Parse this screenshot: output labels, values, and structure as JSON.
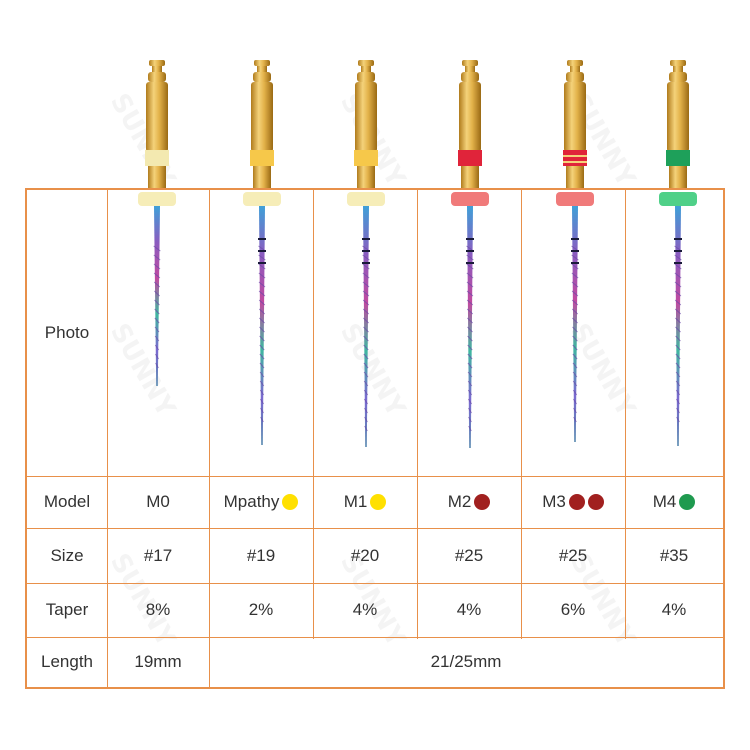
{
  "row_labels": {
    "photo": "Photo",
    "model": "Model",
    "size": "Size",
    "taper": "Taper",
    "length": "Length"
  },
  "files": [
    {
      "model": "M0",
      "size": "#17",
      "taper": "8%",
      "ring": "#f3e9b0",
      "stop": "#f6edb8",
      "band": "none",
      "dots": []
    },
    {
      "model": "Mpathy",
      "size": "#19",
      "taper": "2%",
      "ring": "#f6c84a",
      "stop": "#f6edb8",
      "band": "none",
      "dots": [
        "#ffe000"
      ]
    },
    {
      "model": "M1",
      "size": "#20",
      "taper": "4%",
      "ring": "#f6c84a",
      "stop": "#f6edb8",
      "band": "none",
      "dots": [
        "#ffe000"
      ]
    },
    {
      "model": "M2",
      "size": "#25",
      "taper": "4%",
      "ring": "#e0243a",
      "stop": "#f07a7a",
      "band": "none",
      "dots": [
        "#a1201f"
      ]
    },
    {
      "model": "M3",
      "size": "#25",
      "taper": "6%",
      "ring": "#e0243a",
      "stop": "#f07a7a",
      "band": "double",
      "dots": [
        "#a1201f",
        "#a1201f"
      ]
    },
    {
      "model": "M4",
      "size": "#35",
      "taper": "4%",
      "ring": "#1ea05a",
      "stop": "#4fd088",
      "band": "none",
      "dots": [
        "#1f9a4f"
      ]
    }
  ],
  "length": {
    "m0": "19mm",
    "others": "21/25mm"
  },
  "watermark_text": "SUNNY",
  "colors": {
    "border": "#e8904a",
    "handle_gold": "#e3b24a",
    "text": "#333333"
  }
}
